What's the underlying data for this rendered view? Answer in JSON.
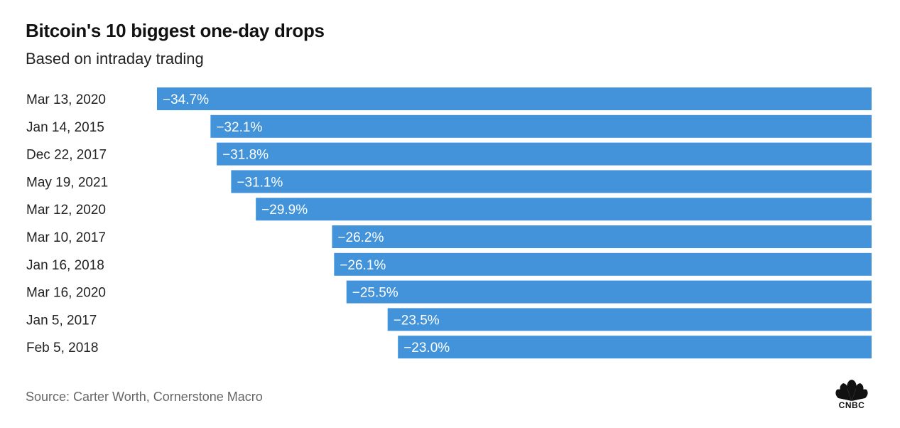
{
  "chart_data": {
    "type": "bar",
    "orientation": "horizontal",
    "title": "Bitcoin's 10 biggest one-day drops",
    "subtitle": "Based on intraday trading",
    "categories": [
      "Mar 13, 2020",
      "Jan 14, 2015",
      "Dec 22, 2017",
      "May 19, 2021",
      "Mar 12, 2020",
      "Mar 10, 2017",
      "Jan 16, 2018",
      "Mar 16, 2020",
      "Jan 5, 2017",
      "Feb 5, 2018"
    ],
    "values": [
      -34.7,
      -32.1,
      -31.8,
      -31.1,
      -29.9,
      -26.2,
      -26.1,
      -25.5,
      -23.5,
      -23.0
    ],
    "data_labels": [
      "−34.7%",
      "−32.1%",
      "−31.8%",
      "−31.1%",
      "−29.9%",
      "−26.2%",
      "−26.1%",
      "−25.5%",
      "−23.5%",
      "−23.0%"
    ],
    "xlim": [
      -34.7,
      0
    ],
    "grid": false,
    "bar_color": "#4293d9",
    "label_color": "#ffffff",
    "source": "Source: Carter Worth, Cornerstone Macro"
  },
  "brand": {
    "logo_text": "CNBC",
    "logo_icon": "peacock-icon"
  }
}
